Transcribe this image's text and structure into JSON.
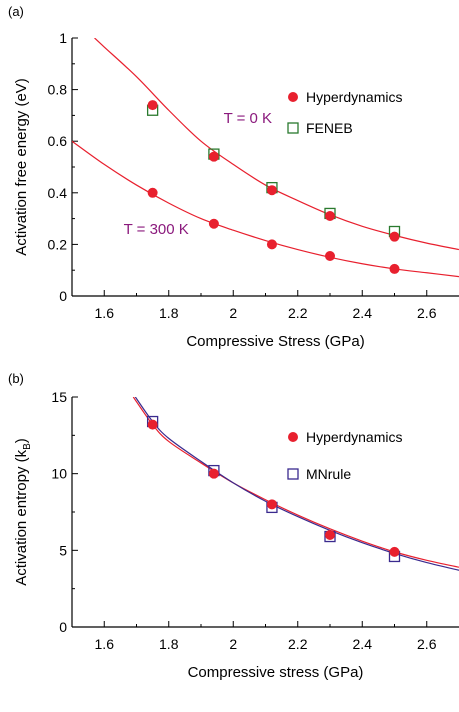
{
  "chart_data": [
    {
      "type": "scatter",
      "panel_label": "(a)",
      "xlabel": "Compressive Stress (GPa)",
      "ylabel": "Activation free energy (eV)",
      "xlim": [
        1.5,
        2.7
      ],
      "ylim": [
        0,
        1
      ],
      "xticks": [
        1.6,
        1.8,
        2,
        2.2,
        2.4,
        2.6
      ],
      "xtick_labels": [
        "1.6",
        "1.8",
        "2",
        "2.2",
        "2.4",
        "2.6"
      ],
      "yticks": [
        0,
        0.2,
        0.4,
        0.6,
        0.8,
        1
      ],
      "ytick_labels": [
        "0",
        "0.2",
        "0.4",
        "0.6",
        "0.8",
        "1"
      ],
      "grid": false,
      "legend_position": "top-right",
      "series": [
        {
          "name": "Hyperdynamics",
          "marker": "filled-circle",
          "color": "#e8202e",
          "x": [
            1.75,
            1.94,
            2.12,
            2.3,
            2.5
          ],
          "y": [
            0.74,
            0.54,
            0.41,
            0.31,
            0.23
          ]
        },
        {
          "name": "FENEB",
          "marker": "open-square",
          "color": "#2a7a2e",
          "x": [
            1.75,
            1.94,
            2.12,
            2.3,
            2.5
          ],
          "y": [
            0.72,
            0.55,
            0.42,
            0.32,
            0.25
          ]
        },
        {
          "marker": "filled-circle",
          "color": "#e8202e",
          "x": [
            1.75,
            1.94,
            2.12,
            2.3,
            2.5
          ],
          "y": [
            0.4,
            0.28,
            0.2,
            0.155,
            0.105
          ]
        }
      ],
      "fit_curves": [
        {
          "color": "#e8202e",
          "x": [
            1.57,
            1.6,
            1.7,
            1.8,
            1.9,
            2.0,
            2.1,
            2.2,
            2.3,
            2.4,
            2.5,
            2.6,
            2.7
          ],
          "y": [
            1.0,
            0.965,
            0.85,
            0.72,
            0.6,
            0.51,
            0.43,
            0.37,
            0.315,
            0.27,
            0.235,
            0.205,
            0.18
          ]
        },
        {
          "color": "#e8202e",
          "x": [
            1.5,
            1.6,
            1.7,
            1.8,
            1.9,
            2.0,
            2.1,
            2.2,
            2.3,
            2.4,
            2.5,
            2.6,
            2.7
          ],
          "y": [
            0.6,
            0.51,
            0.43,
            0.36,
            0.3,
            0.255,
            0.215,
            0.18,
            0.15,
            0.125,
            0.105,
            0.09,
            0.075
          ]
        }
      ],
      "annotations": [
        {
          "text": "T = 0 K",
          "x": 1.97,
          "y": 0.69
        },
        {
          "text": "T = 300 K",
          "x": 1.66,
          "y": 0.26
        }
      ]
    },
    {
      "type": "scatter",
      "panel_label": "(b)",
      "xlabel": "Compressive stress (GPa)",
      "ylabel_prefix": "Activation entropy (k",
      "ylabel_sub": "B",
      "ylabel_suffix": ")",
      "xlim": [
        1.5,
        2.7
      ],
      "ylim": [
        0,
        15
      ],
      "xticks": [
        1.6,
        1.8,
        2,
        2.2,
        2.4,
        2.6
      ],
      "xtick_labels": [
        "1.6",
        "1.8",
        "2",
        "2.2",
        "2.4",
        "2.6"
      ],
      "yticks": [
        0,
        5,
        10,
        15
      ],
      "ytick_labels": [
        "0",
        "5",
        "10",
        "15"
      ],
      "grid": false,
      "legend_position": "top-right",
      "series": [
        {
          "name": "Hyperdynamics",
          "marker": "filled-circle",
          "color": "#e8202e",
          "x": [
            1.75,
            1.94,
            2.12,
            2.3,
            2.5
          ],
          "y": [
            13.2,
            10.0,
            8.0,
            6.0,
            4.9
          ]
        },
        {
          "name": "MNrule",
          "marker": "open-square",
          "color": "#3a2a8e",
          "x": [
            1.75,
            1.94,
            2.12,
            2.3,
            2.5
          ],
          "y": [
            13.4,
            10.2,
            7.8,
            5.9,
            4.6
          ]
        }
      ],
      "fit_curves": [
        {
          "color": "#e8202e",
          "x": [
            1.69,
            1.75,
            1.8,
            1.9,
            2.0,
            2.1,
            2.2,
            2.3,
            2.4,
            2.5,
            2.6,
            2.7
          ],
          "y": [
            15.0,
            13.2,
            12.1,
            10.7,
            9.4,
            8.3,
            7.3,
            6.4,
            5.6,
            4.9,
            4.35,
            3.9
          ]
        },
        {
          "color": "#3a2a8e",
          "x": [
            1.69,
            1.75,
            1.8,
            1.9,
            2.0,
            2.1,
            2.2,
            2.3,
            2.4,
            2.5,
            2.6,
            2.7
          ],
          "y": [
            15.2,
            13.4,
            12.3,
            10.8,
            9.4,
            8.2,
            7.2,
            6.3,
            5.5,
            4.8,
            4.2,
            3.7
          ]
        }
      ],
      "annotations": []
    }
  ]
}
